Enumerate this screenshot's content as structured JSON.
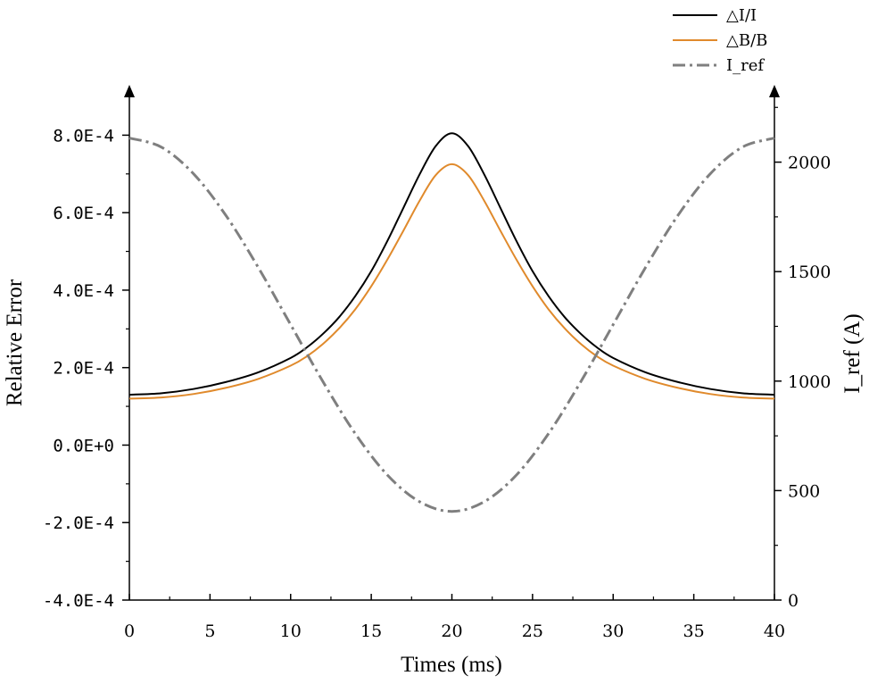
{
  "chart_data": {
    "type": "line",
    "title": "",
    "xlabel": "Times (ms)",
    "ylabel": "Relative Error",
    "y2label": "I_ref (A)",
    "xlim": [
      0,
      40
    ],
    "ylim": [
      -0.0004,
      0.0009
    ],
    "y2lim": [
      0,
      2300
    ],
    "x_ticks": [
      {
        "value": 0,
        "label": "0"
      },
      {
        "value": 5,
        "label": "5"
      },
      {
        "value": 10,
        "label": "10"
      },
      {
        "value": 15,
        "label": "15"
      },
      {
        "value": 20,
        "label": "20"
      },
      {
        "value": 25,
        "label": "25"
      },
      {
        "value": 30,
        "label": "30"
      },
      {
        "value": 35,
        "label": "35"
      },
      {
        "value": 40,
        "label": "40"
      }
    ],
    "y_ticks": [
      {
        "value": 0.0008,
        "label": "8.0E-4"
      },
      {
        "value": 0.0006,
        "label": "6.0E-4"
      },
      {
        "value": 0.0004,
        "label": "4.0E-4"
      },
      {
        "value": 0.0002,
        "label": "2.0E-4"
      },
      {
        "value": 0.0,
        "label": "0.0E+0"
      },
      {
        "value": -0.0002,
        "label": "-2.0E-4"
      },
      {
        "value": -0.0004,
        "label": "-4.0E-4"
      }
    ],
    "y2_ticks": [
      {
        "value": 2000,
        "label": "2000"
      },
      {
        "value": 1500,
        "label": "1500"
      },
      {
        "value": 1000,
        "label": "1000"
      },
      {
        "value": 500,
        "label": "500"
      },
      {
        "value": 0,
        "label": "0"
      }
    ],
    "legend_position": "top-right",
    "series": [
      {
        "name": "△I/I",
        "axis": "left",
        "color": "#000000",
        "dash": "solid",
        "x": [
          0,
          2,
          4,
          6,
          8,
          10,
          11,
          12,
          13,
          14,
          15,
          16,
          17,
          18,
          19,
          20,
          21,
          22,
          23,
          24,
          25,
          26,
          27,
          28,
          29,
          30,
          32,
          34,
          36,
          38,
          40
        ],
        "values": [
          0.00013,
          0.000134,
          0.000145,
          0.000163,
          0.000188,
          0.000225,
          0.000252,
          0.000287,
          0.00033,
          0.000384,
          0.000449,
          0.000527,
          0.000613,
          0.000699,
          0.000772,
          0.000805,
          0.000772,
          0.000699,
          0.000613,
          0.000527,
          0.000449,
          0.000384,
          0.00033,
          0.000287,
          0.000252,
          0.000225,
          0.000188,
          0.000163,
          0.000145,
          0.000134,
          0.00013
        ]
      },
      {
        "name": "△B/B",
        "axis": "left",
        "color": "#E08A2C",
        "dash": "solid",
        "x": [
          0,
          2,
          4,
          6,
          8,
          10,
          11,
          12,
          13,
          14,
          15,
          16,
          17,
          18,
          19,
          20,
          21,
          22,
          23,
          24,
          25,
          26,
          27,
          28,
          29,
          30,
          32,
          34,
          36,
          38,
          40
        ],
        "values": [
          0.00012,
          0.000123,
          0.000132,
          0.000148,
          0.000171,
          0.000205,
          0.000229,
          0.000261,
          0.000301,
          0.00035,
          0.00041,
          0.000479,
          0.000554,
          0.000631,
          0.000697,
          0.000725,
          0.000697,
          0.000631,
          0.000554,
          0.000479,
          0.00041,
          0.00035,
          0.000301,
          0.000261,
          0.000229,
          0.000205,
          0.000171,
          0.000148,
          0.000132,
          0.000123,
          0.00012
        ]
      },
      {
        "name": "I_ref",
        "axis": "right",
        "color": "#7F7F7F",
        "dash": "dashdot",
        "x": [
          0,
          2,
          4,
          6,
          8,
          10,
          12,
          14,
          16,
          18,
          20,
          22,
          24,
          26,
          28,
          30,
          32,
          34,
          36,
          38,
          40
        ],
        "values": [
          2110,
          2068,
          1945,
          1755,
          1518,
          1258,
          998,
          761,
          571,
          449,
          405,
          449,
          571,
          761,
          998,
          1258,
          1518,
          1755,
          1945,
          2068,
          2110
        ]
      }
    ]
  }
}
